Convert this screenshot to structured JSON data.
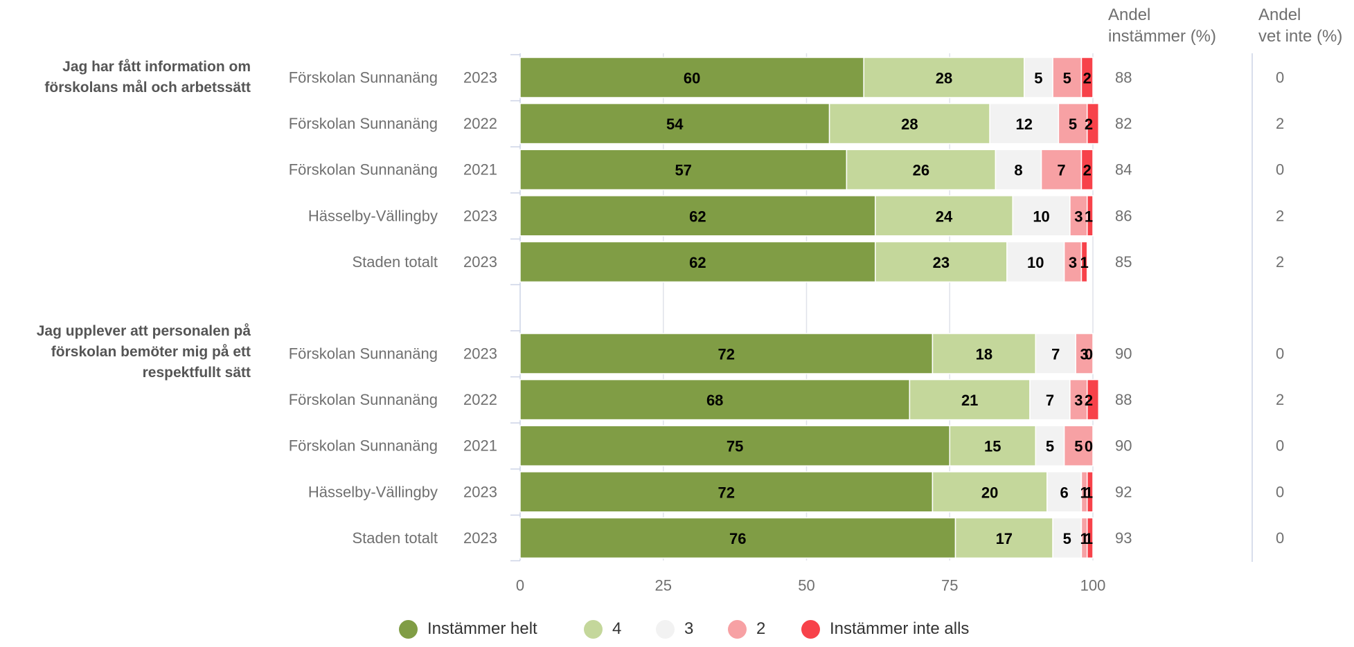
{
  "chart_data": {
    "type": "bar",
    "orientation": "horizontal",
    "stacked": true,
    "xlim": [
      0,
      100
    ],
    "x_ticks": [
      0,
      25,
      50,
      75,
      100
    ],
    "grid": true,
    "legend_position": "bottom",
    "series": [
      {
        "name": "Instämmer helt",
        "color": "#809d45"
      },
      {
        "name": "4",
        "color": "#c4d79b"
      },
      {
        "name": "3",
        "color": "#f2f2f2"
      },
      {
        "name": "2",
        "color": "#f7a1a4"
      },
      {
        "name": "Instämmer inte alls",
        "color": "#f7424a"
      }
    ],
    "column_headers": {
      "andel_instammer": [
        "Andel",
        "instämmer (%)"
      ],
      "andel_vet_inte": [
        "Andel",
        "vet inte (%)"
      ]
    },
    "groups": [
      {
        "question": [
          "Jag har fått information om",
          "förskolans mål och arbetssätt"
        ],
        "rows": [
          {
            "unit": "Förskolan Sunnanäng",
            "year": "2023",
            "values": [
              60,
              28,
              5,
              5,
              2
            ],
            "andel_instammer": "88",
            "andel_vet_inte": "0"
          },
          {
            "unit": "Förskolan Sunnanäng",
            "year": "2022",
            "values": [
              54,
              28,
              12,
              5,
              2
            ],
            "andel_instammer": "82",
            "andel_vet_inte": "2"
          },
          {
            "unit": "Förskolan Sunnanäng",
            "year": "2021",
            "values": [
              57,
              26,
              8,
              7,
              2
            ],
            "andel_instammer": "84",
            "andel_vet_inte": "0"
          },
          {
            "unit": "Hässelby-Vällingby",
            "year": "2023",
            "values": [
              62,
              24,
              10,
              3,
              1
            ],
            "andel_instammer": "86",
            "andel_vet_inte": "2"
          },
          {
            "unit": "Staden totalt",
            "year": "2023",
            "values": [
              62,
              23,
              10,
              3,
              1
            ],
            "andel_instammer": "85",
            "andel_vet_inte": "2"
          }
        ]
      },
      {
        "question": [
          "Jag upplever att personalen på",
          "förskolan bemöter mig på ett",
          "respektfullt sätt"
        ],
        "rows": [
          {
            "unit": "Förskolan Sunnanäng",
            "year": "2023",
            "values": [
              72,
              18,
              7,
              3,
              0
            ],
            "andel_instammer": "90",
            "andel_vet_inte": "0"
          },
          {
            "unit": "Förskolan Sunnanäng",
            "year": "2022",
            "values": [
              68,
              21,
              7,
              3,
              2
            ],
            "andel_instammer": "88",
            "andel_vet_inte": "2"
          },
          {
            "unit": "Förskolan Sunnanäng",
            "year": "2021",
            "values": [
              75,
              15,
              5,
              5,
              0
            ],
            "andel_instammer": "90",
            "andel_vet_inte": "0"
          },
          {
            "unit": "Hässelby-Vällingby",
            "year": "2023",
            "values": [
              72,
              20,
              6,
              1,
              1
            ],
            "andel_instammer": "92",
            "andel_vet_inte": "0"
          },
          {
            "unit": "Staden totalt",
            "year": "2023",
            "values": [
              76,
              17,
              5,
              1,
              1
            ],
            "andel_instammer": "93",
            "andel_vet_inte": "0"
          }
        ]
      }
    ]
  }
}
